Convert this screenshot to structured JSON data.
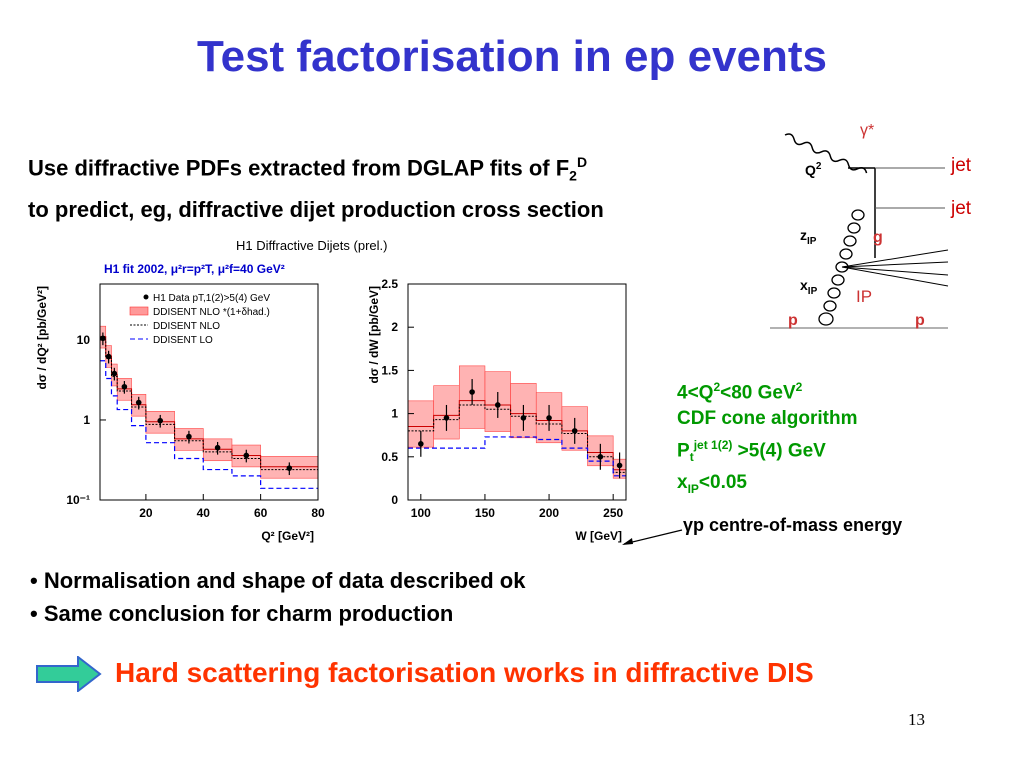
{
  "slide": {
    "title": "Test factorisation in ep events",
    "intro_line1_a": "Use diffractive PDFs extracted from DGLAP fits of F",
    "intro_line1_sub": "2",
    "intro_line1_sup": "D",
    "intro_line2": "to predict, eg, diffractive dijet production cross section",
    "bullet1": "• Normalisation and shape of data described ok",
    "bullet2": "• Same conclusion for charm production",
    "conclusion": "Hard scattering factorisation works in diffractive DIS",
    "page_number": "13"
  },
  "conditions": {
    "q2_range": "4<Q",
    "q2_sup": "2",
    "q2_tail": "<80 GeV",
    "q2_unit_sup": "2",
    "algorithm": "CDF cone algorithm",
    "pt_prefix": "P",
    "pt_sub": "t",
    "pt_sup": "jet 1(2)",
    "pt_tail": " >5(4) GeV",
    "xip_prefix": "x",
    "xip_sub": "IP",
    "xip_tail": "<0.05"
  },
  "annotation": {
    "gp_text": "γp centre-of-mass energy"
  },
  "diagram": {
    "gamma_label": "γ*",
    "q2_label": "Q",
    "q2_sup": "2",
    "jet1": "jet",
    "jet2": "jet",
    "zip_label": "z",
    "zip_sub": "IP",
    "g_label": "g",
    "xip_label": "x",
    "xip_sub": "IP",
    "ip_label": "IP",
    "p_left": "p",
    "p_right": "p"
  },
  "plot_header": {
    "main_title": "H1 Diffractive Dijets (prel.)",
    "fit_label": "H1 fit 2002, μ²r=p²T, μ²f=40 GeV²",
    "legend_data": "H1 Data  pT,1(2)>5(4) GeV",
    "legend_band": "DDISENT NLO *(1+δhad.)",
    "legend_nlo": "DDISENT NLO",
    "legend_lo": "DDISENT LO",
    "colors": {
      "fit_label": "#0000cc",
      "band": "#ff6666",
      "lo": "#0000ff"
    }
  },
  "chart_data": [
    {
      "type": "scatter",
      "title": "",
      "xlabel": "Q² [GeV²]",
      "ylabel": "dσ / dQ² [pb/GeV²]",
      "ylog": true,
      "xlim": [
        4,
        80
      ],
      "ylim": [
        0.1,
        50
      ],
      "xticks": [
        "20",
        "40",
        "60",
        "80"
      ],
      "yticks": [
        "10",
        "1",
        "10⁻¹"
      ],
      "bins": [
        4,
        6,
        8,
        10,
        15,
        20,
        30,
        40,
        50,
        60,
        80
      ],
      "series": [
        {
          "name": "H1 Data  pT,1(2)>5(4) GeV",
          "x": [
            5,
            7,
            9,
            12.5,
            17.5,
            25,
            35,
            45,
            55,
            70
          ],
          "values": [
            10.5,
            6.2,
            3.8,
            2.6,
            1.65,
            0.98,
            0.62,
            0.45,
            0.36,
            0.25
          ]
        },
        {
          "name": "DDISENT NLO *(1+δhad.)",
          "values": [
            11,
            6.3,
            3.7,
            2.45,
            1.55,
            0.95,
            0.58,
            0.43,
            0.36,
            0.26
          ]
        },
        {
          "name": "DDISENT NLO",
          "values": [
            10,
            5.9,
            3.5,
            2.3,
            1.45,
            0.88,
            0.55,
            0.4,
            0.33,
            0.24
          ]
        },
        {
          "name": "DDISENT LO",
          "values": [
            5.5,
            3.3,
            2.0,
            1.35,
            0.85,
            0.52,
            0.33,
            0.24,
            0.2,
            0.14
          ]
        }
      ]
    },
    {
      "type": "scatter",
      "title": "",
      "xlabel": "W [GeV]",
      "ylabel": "dσ / dW [pb/GeV]",
      "xlim": [
        90,
        260
      ],
      "ylim": [
        0,
        2.5
      ],
      "xticks": [
        "100",
        "150",
        "200",
        "250"
      ],
      "yticks": [
        "0",
        "0.5",
        "1",
        "1.5",
        "2",
        "2.5"
      ],
      "bins": [
        90,
        110,
        130,
        150,
        170,
        190,
        210,
        230,
        250,
        260
      ],
      "series": [
        {
          "name": "H1 Data  pT,1(2)>5(4) GeV",
          "x": [
            100,
            120,
            140,
            160,
            180,
            200,
            220,
            240,
            255
          ],
          "values": [
            0.65,
            0.95,
            1.25,
            1.1,
            0.95,
            0.95,
            0.8,
            0.5,
            0.4
          ]
        },
        {
          "name": "DDISENT NLO *(1+δhad.)",
          "values": [
            0.85,
            0.98,
            1.15,
            1.1,
            1.0,
            0.92,
            0.8,
            0.55,
            0.35
          ]
        },
        {
          "name": "DDISENT NLO",
          "values": [
            0.8,
            0.93,
            1.1,
            1.05,
            0.97,
            0.88,
            0.77,
            0.5,
            0.32
          ]
        },
        {
          "name": "DDISENT LO",
          "values": [
            0.6,
            0.6,
            0.6,
            0.73,
            0.73,
            0.7,
            0.6,
            0.45,
            0.28
          ]
        }
      ]
    }
  ]
}
